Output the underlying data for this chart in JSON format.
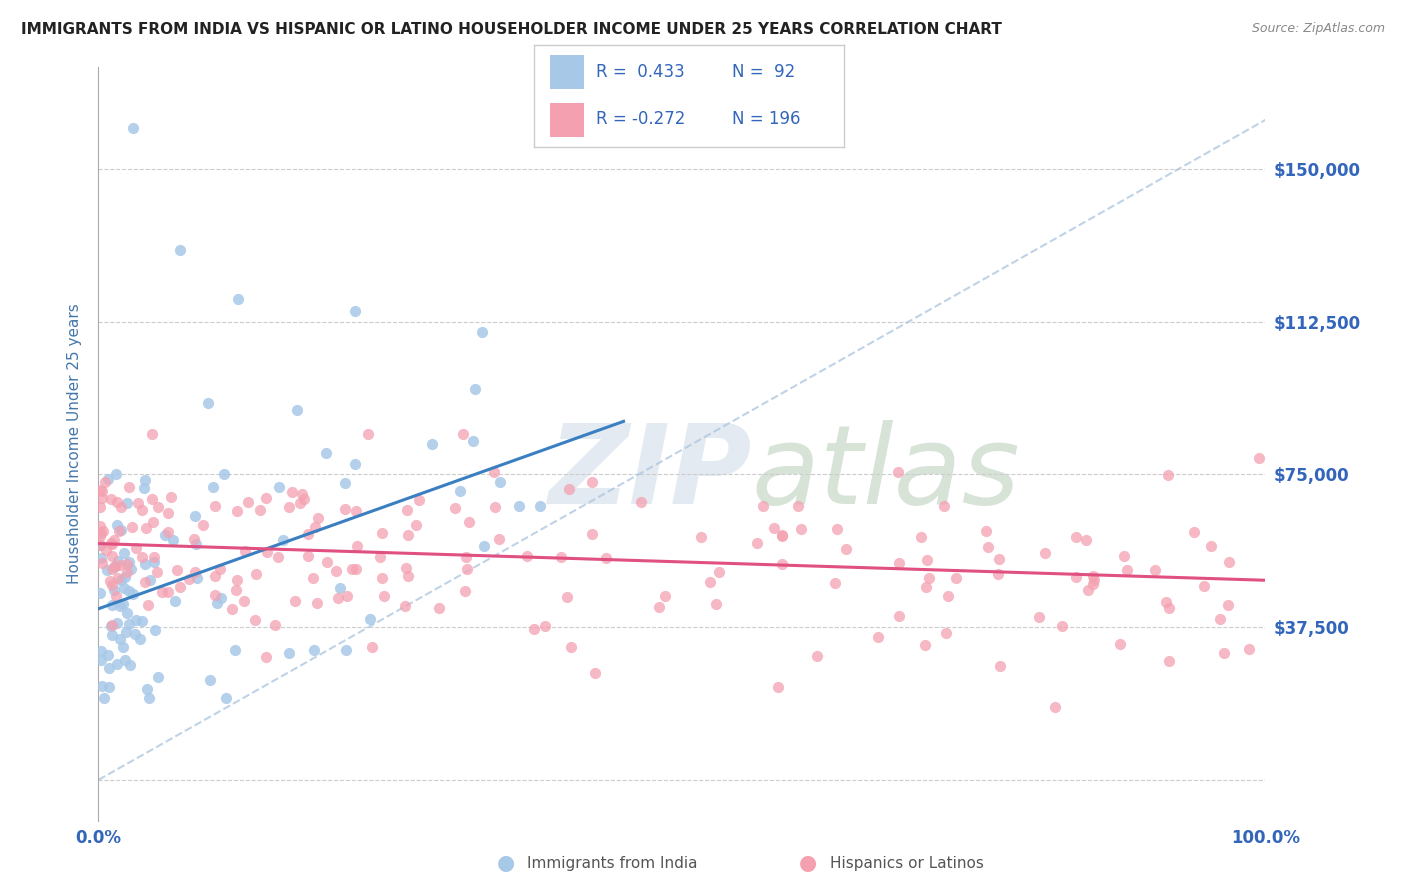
{
  "title": "IMMIGRANTS FROM INDIA VS HISPANIC OR LATINO HOUSEHOLDER INCOME UNDER 25 YEARS CORRELATION CHART",
  "source": "Source: ZipAtlas.com",
  "ylabel": "Householder Income Under 25 years",
  "xlim": [
    0,
    100
  ],
  "ylim": [
    -10000,
    175000
  ],
  "yticks": [
    0,
    37500,
    75000,
    112500,
    150000
  ],
  "ytick_labels": [
    "",
    "$37,500",
    "$75,000",
    "$112,500",
    "$150,000"
  ],
  "xtick_labels": [
    "0.0%",
    "100.0%"
  ],
  "legend_r1": "R =  0.433",
  "legend_n1": "N =  92",
  "legend_r2": "R = -0.272",
  "legend_n2": "N = 196",
  "label1": "Immigrants from India",
  "label2": "Hispanics or Latinos",
  "color_india": "#a8c8e8",
  "color_hispanic": "#f4a0b0",
  "color_india_line": "#3a7fc1",
  "color_hispanic_line": "#e05080",
  "color_ref_line": "#b0c8e0",
  "title_color": "#222222",
  "axis_label_color": "#4477aa",
  "tick_color": "#3366bb",
  "background_color": "#ffffff",
  "india_trend_x0": 0,
  "india_trend_y0": 42000,
  "india_trend_x1": 45,
  "india_trend_y1": 88000,
  "hisp_trend_x0": 0,
  "hisp_trend_y0": 58000,
  "hisp_trend_x1": 100,
  "hisp_trend_y1": 49000
}
